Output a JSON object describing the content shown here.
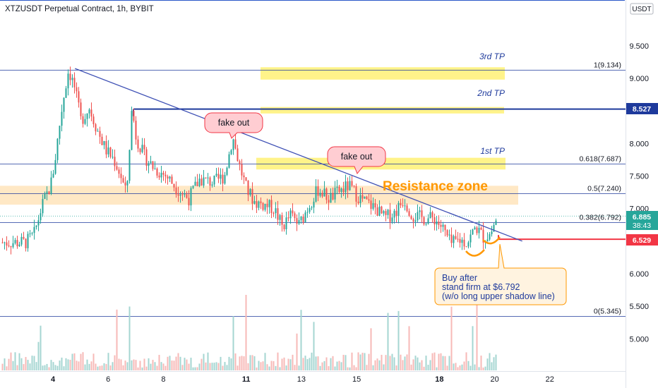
{
  "header": {
    "title": "XTZUSDT Perpetual Contract, 1h, BYBIT",
    "currency": "USDT"
  },
  "price_badges": {
    "last_price": "6.885",
    "countdown": "38:43",
    "level_high": "8.527",
    "level_low": "6.529",
    "colors": {
      "last": "#26a69a",
      "high": "#1e3a9c",
      "low": "#f23645"
    }
  },
  "annotations": {
    "tp1": "1st TP",
    "tp2": "2nd TP",
    "tp3": "3rd TP",
    "resistance": "Resistance zone",
    "fakeout1": "fake out",
    "fakeout2": "fake out",
    "note_lines": [
      "Buy after",
      "stand firm at $6.792",
      "(w/o long upper shadow line)"
    ]
  },
  "chart_data": {
    "type": "candlestick",
    "title": "XTZUSDT Perpetual Contract, 1h, BYBIT",
    "y_ticks": [
      "9.500",
      "9.000",
      "8.500",
      "8.000",
      "7.500",
      "7.000",
      "6.500",
      "6.000",
      "5.500",
      "5.000"
    ],
    "x_ticks": [
      "4",
      "6",
      "8",
      "11",
      "13",
      "15",
      "18",
      "20",
      "22"
    ],
    "x_tick_values": [
      4,
      6,
      8,
      11,
      13,
      15,
      18,
      20,
      22
    ],
    "fib_levels": [
      {
        "ratio": "1",
        "value": 9.134,
        "label": "1(9.134)"
      },
      {
        "ratio": "0.618",
        "value": 7.687,
        "label": "0.618(7.687)"
      },
      {
        "ratio": "0.5",
        "value": 7.24,
        "label": "0.5(7.240)"
      },
      {
        "ratio": "0.382",
        "value": 6.792,
        "label": "0.382(6.792)"
      },
      {
        "ratio": "0",
        "value": 5.345,
        "label": "0(5.345)"
      }
    ],
    "horizontal_levels": [
      8.527,
      6.529
    ],
    "tp_zones": [
      {
        "label": "1st TP",
        "low": 7.6,
        "high": 7.78
      },
      {
        "label": "2nd TP",
        "low": 8.46,
        "high": 8.56
      },
      {
        "label": "3rd TP",
        "low": 8.98,
        "high": 9.17
      }
    ],
    "resistance_zone": {
      "label": "Resistance zone",
      "low": 7.06,
      "high": 7.35
    },
    "trendline": [
      {
        "day": 4.8,
        "price": 9.15
      },
      {
        "day": 21.0,
        "price": 6.5
      }
    ],
    "last_price": 6.885,
    "approx_path": [
      [
        3.0,
        6.48
      ],
      [
        3.3,
        6.6
      ],
      [
        3.6,
        7.05
      ],
      [
        3.9,
        7.35
      ],
      [
        4.05,
        7.7
      ],
      [
        4.2,
        8.2
      ],
      [
        4.35,
        8.65
      ],
      [
        4.55,
        9.13
      ],
      [
        4.75,
        8.9
      ],
      [
        5.0,
        8.35
      ],
      [
        5.3,
        8.55
      ],
      [
        5.6,
        8.2
      ],
      [
        5.9,
        7.9
      ],
      [
        6.2,
        7.75
      ],
      [
        6.45,
        7.5
      ],
      [
        6.65,
        7.2
      ],
      [
        6.85,
        8.55
      ],
      [
        7.0,
        8.1
      ],
      [
        7.3,
        7.8
      ],
      [
        7.7,
        7.6
      ],
      [
        8.1,
        7.5
      ],
      [
        8.5,
        7.3
      ],
      [
        8.9,
        7.15
      ],
      [
        9.3,
        7.45
      ],
      [
        9.8,
        7.4
      ],
      [
        10.2,
        7.5
      ],
      [
        10.5,
        8.1
      ],
      [
        10.75,
        7.65
      ],
      [
        11.0,
        7.3
      ],
      [
        11.3,
        7.1
      ],
      [
        11.7,
        7.05
      ],
      [
        12.0,
        7.0
      ],
      [
        12.3,
        6.72
      ],
      [
        12.6,
        6.9
      ],
      [
        12.9,
        6.75
      ],
      [
        13.2,
        7.0
      ],
      [
        13.6,
        7.3
      ],
      [
        14.0,
        7.15
      ],
      [
        14.3,
        7.25
      ],
      [
        14.7,
        7.35
      ],
      [
        15.0,
        7.2
      ],
      [
        15.3,
        7.1
      ],
      [
        15.7,
        7.0
      ],
      [
        16.0,
        6.85
      ],
      [
        16.4,
        6.95
      ],
      [
        16.7,
        7.15
      ],
      [
        17.0,
        6.9
      ],
      [
        17.4,
        6.85
      ],
      [
        17.8,
        6.85
      ],
      [
        18.1,
        6.7
      ],
      [
        18.4,
        6.45
      ],
      [
        18.7,
        6.52
      ],
      [
        19.0,
        6.48
      ],
      [
        19.3,
        6.72
      ],
      [
        19.6,
        6.55
      ],
      [
        19.85,
        6.62
      ],
      [
        20.0,
        6.8
      ],
      [
        20.1,
        6.885
      ]
    ]
  },
  "volume_data": {
    "note": "Volume histogram at bottom, spikes near days 4, 11 and 17"
  }
}
